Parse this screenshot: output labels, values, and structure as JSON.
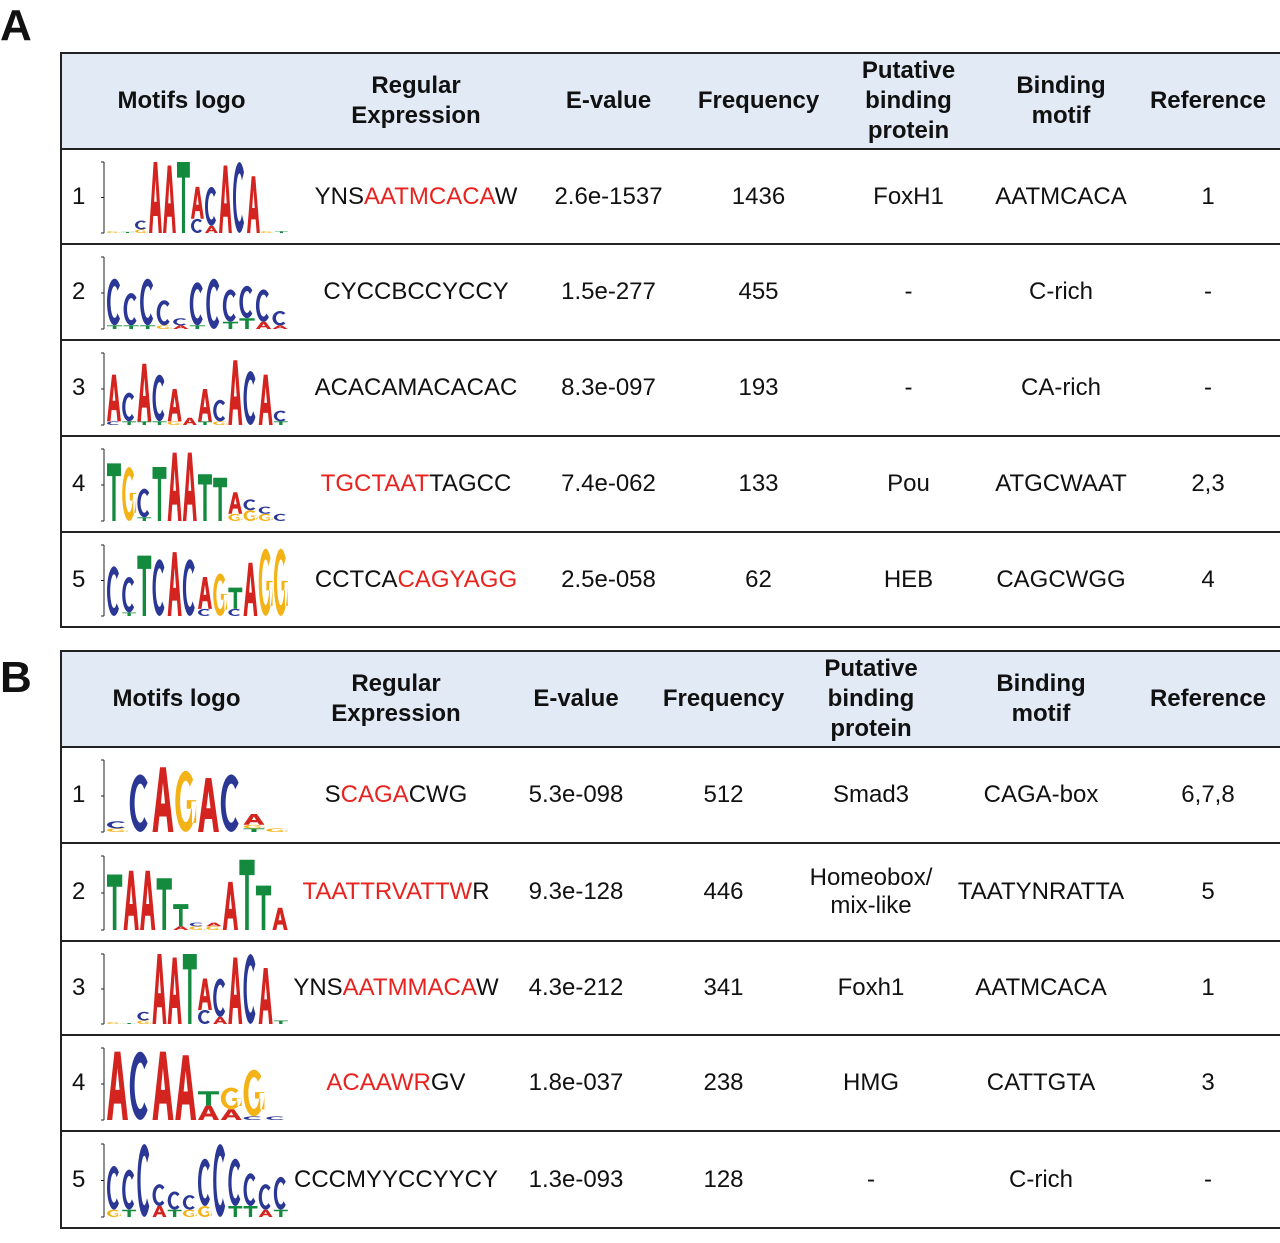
{
  "colors": {
    "A": "#d42420",
    "C": "#2a3795",
    "G": "#f3b215",
    "T": "#138a3e",
    "header_bg": "#e2eaf5",
    "highlight": "#e8231f"
  },
  "panels": [
    {
      "label": "A",
      "headers": [
        "Motifs logo",
        "Regular Expression",
        "E-value",
        "Frequency",
        "Putative binding protein",
        "Binding motif",
        "Reference"
      ],
      "rows": [
        {
          "num": "1",
          "regex": [
            {
              "t": "YNS",
              "red": false
            },
            {
              "t": "AATMCACA",
              "red": true
            },
            {
              "t": "W",
              "red": false
            }
          ],
          "evalue": "2.6e-1537",
          "frequency": "1436",
          "protein": "FoxH1",
          "motif": "AATMCACA",
          "reference": "1",
          "logo": [
            [
              [
                "G",
                0.05
              ]
            ],
            [
              [
                "T",
                0.03
              ]
            ],
            [
              [
                "G",
                0.1
              ],
              [
                "C",
                0.25
              ]
            ],
            [
              [
                "A",
                2
              ]
            ],
            [
              [
                "A",
                1.9
              ]
            ],
            [
              [
                "T",
                2
              ]
            ],
            [
              [
                "C",
                0.4
              ],
              [
                "A",
                0.9
              ]
            ],
            [
              [
                "A",
                0.2
              ],
              [
                "C",
                1.1
              ]
            ],
            [
              [
                "A",
                1.9
              ]
            ],
            [
              [
                "C",
                2
              ]
            ],
            [
              [
                "A",
                1.6
              ]
            ],
            [
              [
                "G",
                0.05
              ]
            ],
            [
              [
                "T",
                0.05
              ]
            ]
          ]
        },
        {
          "num": "2",
          "regex": [
            {
              "t": "CYCCBCCYCCY",
              "red": false
            }
          ],
          "evalue": "1.5e-277",
          "frequency": "455",
          "protein": "-",
          "motif": "C-rich",
          "reference": "-",
          "logo": [
            [
              [
                "T",
                0.1
              ],
              [
                "C",
                1.3
              ]
            ],
            [
              [
                "T",
                0.1
              ],
              [
                "C",
                0.9
              ]
            ],
            [
              [
                "T",
                0.1
              ],
              [
                "C",
                1.3
              ]
            ],
            [
              [
                "G",
                0.1
              ],
              [
                "C",
                0.7
              ]
            ],
            [
              [
                "A",
                0.1
              ],
              [
                "C",
                0.2
              ]
            ],
            [
              [
                "T",
                0.1
              ],
              [
                "C",
                1.2
              ]
            ],
            [
              [
                "C",
                1.4
              ]
            ],
            [
              [
                "T",
                0.2
              ],
              [
                "C",
                0.9
              ]
            ],
            [
              [
                "T",
                0.3
              ],
              [
                "C",
                0.9
              ]
            ],
            [
              [
                "A",
                0.2
              ],
              [
                "C",
                0.9
              ]
            ],
            [
              [
                "A",
                0.1
              ],
              [
                "C",
                0.4
              ]
            ]
          ]
        },
        {
          "num": "3",
          "regex": [
            {
              "t": "ACACAMACACAC",
              "red": false
            }
          ],
          "evalue": "8.3e-097",
          "frequency": "193",
          "protein": "-",
          "motif": "CA-rich",
          "reference": "-",
          "logo": [
            [
              [
                "C",
                0.1
              ],
              [
                "A",
                1.3
              ]
            ],
            [
              [
                "T",
                0.1
              ],
              [
                "C",
                0.8
              ]
            ],
            [
              [
                "T",
                0.1
              ],
              [
                "A",
                1.6
              ]
            ],
            [
              [
                "T",
                0.1
              ],
              [
                "C",
                1.3
              ]
            ],
            [
              [
                "G",
                0.1
              ],
              [
                "A",
                0.9
              ]
            ],
            [
              [
                "A",
                0.2
              ]
            ],
            [
              [
                "T",
                0.1
              ],
              [
                "A",
                0.9
              ]
            ],
            [
              [
                "G",
                0.1
              ],
              [
                "C",
                0.6
              ]
            ],
            [
              [
                "A",
                1.8
              ]
            ],
            [
              [
                "C",
                1.5
              ]
            ],
            [
              [
                "A",
                1.4
              ]
            ],
            [
              [
                "T",
                0.1
              ],
              [
                "C",
                0.3
              ]
            ]
          ]
        },
        {
          "num": "4",
          "regex": [
            {
              "t": "TGCTAAT",
              "red": true
            },
            {
              "t": "TAGCC",
              "red": false
            }
          ],
          "evalue": "7.4e-062",
          "frequency": "133",
          "protein": "Pou",
          "motif": "ATGCWAAT",
          "reference": "2,3",
          "logo": [
            [
              [
                "T",
                1.6
              ]
            ],
            [
              [
                "G",
                1.5
              ]
            ],
            [
              [
                "T",
                0.1
              ],
              [
                "C",
                0.8
              ]
            ],
            [
              [
                "T",
                1.5
              ]
            ],
            [
              [
                "A",
                1.9
              ]
            ],
            [
              [
                "A",
                1.9
              ]
            ],
            [
              [
                "T",
                1.3
              ]
            ],
            [
              [
                "T",
                1.2
              ]
            ],
            [
              [
                "G",
                0.2
              ],
              [
                "A",
                0.6
              ]
            ],
            [
              [
                "G",
                0.3
              ],
              [
                "C",
                0.3
              ]
            ],
            [
              [
                "G",
                0.2
              ],
              [
                "C",
                0.2
              ]
            ],
            [
              [
                "C",
                0.2
              ]
            ]
          ]
        },
        {
          "num": "5",
          "regex": [
            {
              "t": "CCTCA",
              "red": false
            },
            {
              "t": "CAGYAGG",
              "red": true
            }
          ],
          "evalue": "2.5e-058",
          "frequency": "62",
          "protein": "HEB",
          "motif": "CAGCWGG",
          "reference": "4",
          "logo": [
            [
              [
                "C",
                1.4
              ]
            ],
            [
              [
                "T",
                0.1
              ],
              [
                "C",
                1.0
              ]
            ],
            [
              [
                "T",
                1.7
              ]
            ],
            [
              [
                "C",
                1.6
              ]
            ],
            [
              [
                "A",
                1.8
              ]
            ],
            [
              [
                "C",
                1.6
              ]
            ],
            [
              [
                "C",
                0.2
              ],
              [
                "A",
                0.9
              ]
            ],
            [
              [
                "G",
                1.2
              ]
            ],
            [
              [
                "C",
                0.2
              ],
              [
                "T",
                0.6
              ]
            ],
            [
              [
                "A",
                1.5
              ]
            ],
            [
              [
                "G",
                1.9
              ]
            ],
            [
              [
                "G",
                1.9
              ]
            ]
          ]
        }
      ]
    },
    {
      "label": "B",
      "headers": [
        "Motifs logo",
        "Regular Expression",
        "E-value",
        "Frequency",
        "Putative binding protein",
        "Binding motif",
        "Reference"
      ],
      "rows": [
        {
          "num": "1",
          "regex": [
            {
              "t": "S",
              "red": false
            },
            {
              "t": "CAGA",
              "red": true
            },
            {
              "t": "CWG",
              "red": false
            }
          ],
          "evalue": "5.3e-098",
          "frequency": "512",
          "protein": "Smad3",
          "motif": "CAGA-box",
          "reference": "6,7,8",
          "logo": [
            [
              [
                "G",
                0.1
              ],
              [
                "C",
                0.2
              ]
            ],
            [
              [
                "C",
                1.6
              ]
            ],
            [
              [
                "A",
                1.8
              ]
            ],
            [
              [
                "G",
                1.7
              ]
            ],
            [
              [
                "A",
                1.5
              ]
            ],
            [
              [
                "C",
                1.6
              ]
            ],
            [
              [
                "T",
                0.1
              ],
              [
                "G",
                0.1
              ],
              [
                "A",
                0.3
              ]
            ],
            [
              [
                "G",
                0.1
              ]
            ]
          ]
        },
        {
          "num": "2",
          "regex": [
            {
              "t": "TAATTRVATTW",
              "red": true
            },
            {
              "t": "R",
              "red": false
            }
          ],
          "evalue": "9.3e-128",
          "frequency": "446",
          "protein": "Homeobox/ mix-like",
          "motif": "TAATYNRATTA",
          "reference": "5",
          "logo": [
            [
              [
                "T",
                1.5
              ]
            ],
            [
              [
                "A",
                1.6
              ]
            ],
            [
              [
                "A",
                1.6
              ]
            ],
            [
              [
                "T",
                1.4
              ]
            ],
            [
              [
                "A",
                0.1
              ],
              [
                "T",
                0.6
              ]
            ],
            [
              [
                "G",
                0.1
              ],
              [
                "C",
                0.1
              ]
            ],
            [
              [
                "G",
                0.1
              ],
              [
                "A",
                0.1
              ]
            ],
            [
              [
                "A",
                1.3
              ]
            ],
            [
              [
                "T",
                1.9
              ]
            ],
            [
              [
                "T",
                1.2
              ]
            ],
            [
              [
                "A",
                0.6
              ]
            ]
          ]
        },
        {
          "num": "3",
          "regex": [
            {
              "t": "YNS",
              "red": false
            },
            {
              "t": "AATMMACA",
              "red": true
            },
            {
              "t": "W",
              "red": false
            }
          ],
          "evalue": "4.3e-212",
          "frequency": "341",
          "protein": "Foxh1",
          "motif": "AATMCACA",
          "reference": "1",
          "logo": [
            [
              [
                "G",
                0.05
              ]
            ],
            [
              [
                "T",
                0.03
              ]
            ],
            [
              [
                "G",
                0.1
              ],
              [
                "C",
                0.25
              ]
            ],
            [
              [
                "A",
                2
              ]
            ],
            [
              [
                "A",
                1.9
              ]
            ],
            [
              [
                "T",
                2
              ]
            ],
            [
              [
                "C",
                0.4
              ],
              [
                "A",
                0.9
              ]
            ],
            [
              [
                "A",
                0.2
              ],
              [
                "C",
                1.1
              ]
            ],
            [
              [
                "A",
                1.9
              ]
            ],
            [
              [
                "C",
                2
              ]
            ],
            [
              [
                "A",
                1.6
              ]
            ],
            [
              [
                "T",
                0.1
              ]
            ]
          ]
        },
        {
          "num": "4",
          "regex": [
            {
              "t": "ACAAWR",
              "red": true
            },
            {
              "t": "GV",
              "red": false
            }
          ],
          "evalue": "1.8e-037",
          "frequency": "238",
          "protein": "HMG",
          "motif": "CATTGTA",
          "reference": "3",
          "logo": [
            [
              [
                "A",
                1.9
              ]
            ],
            [
              [
                "C",
                1.9
              ]
            ],
            [
              [
                "A",
                1.9
              ]
            ],
            [
              [
                "A",
                1.8
              ]
            ],
            [
              [
                "A",
                0.4
              ],
              [
                "T",
                0.4
              ]
            ],
            [
              [
                "A",
                0.3
              ],
              [
                "G",
                0.6
              ]
            ],
            [
              [
                "C",
                0.1
              ],
              [
                "G",
                1.3
              ]
            ],
            [
              [
                "C",
                0.1
              ]
            ]
          ]
        },
        {
          "num": "5",
          "regex": [
            {
              "t": "CCCMYYCCYYCY",
              "red": false
            }
          ],
          "evalue": "1.3e-093",
          "frequency": "128",
          "protein": "-",
          "motif": "C-rich",
          "reference": "-",
          "logo": [
            [
              [
                "G",
                0.2
              ],
              [
                "C",
                1.2
              ]
            ],
            [
              [
                "T",
                0.2
              ],
              [
                "C",
                1.1
              ]
            ],
            [
              [
                "C",
                2
              ]
            ],
            [
              [
                "A",
                0.3
              ],
              [
                "C",
                0.6
              ]
            ],
            [
              [
                "T",
                0.2
              ],
              [
                "C",
                0.5
              ]
            ],
            [
              [
                "G",
                0.2
              ],
              [
                "C",
                0.4
              ]
            ],
            [
              [
                "G",
                0.3
              ],
              [
                "C",
                1.3
              ]
            ],
            [
              [
                "C",
                2
              ]
            ],
            [
              [
                "T",
                0.3
              ],
              [
                "C",
                1.3
              ]
            ],
            [
              [
                "T",
                0.3
              ],
              [
                "C",
                0.9
              ]
            ],
            [
              [
                "A",
                0.2
              ],
              [
                "C",
                0.7
              ]
            ],
            [
              [
                "T",
                0.2
              ],
              [
                "C",
                0.9
              ]
            ]
          ]
        }
      ]
    }
  ]
}
